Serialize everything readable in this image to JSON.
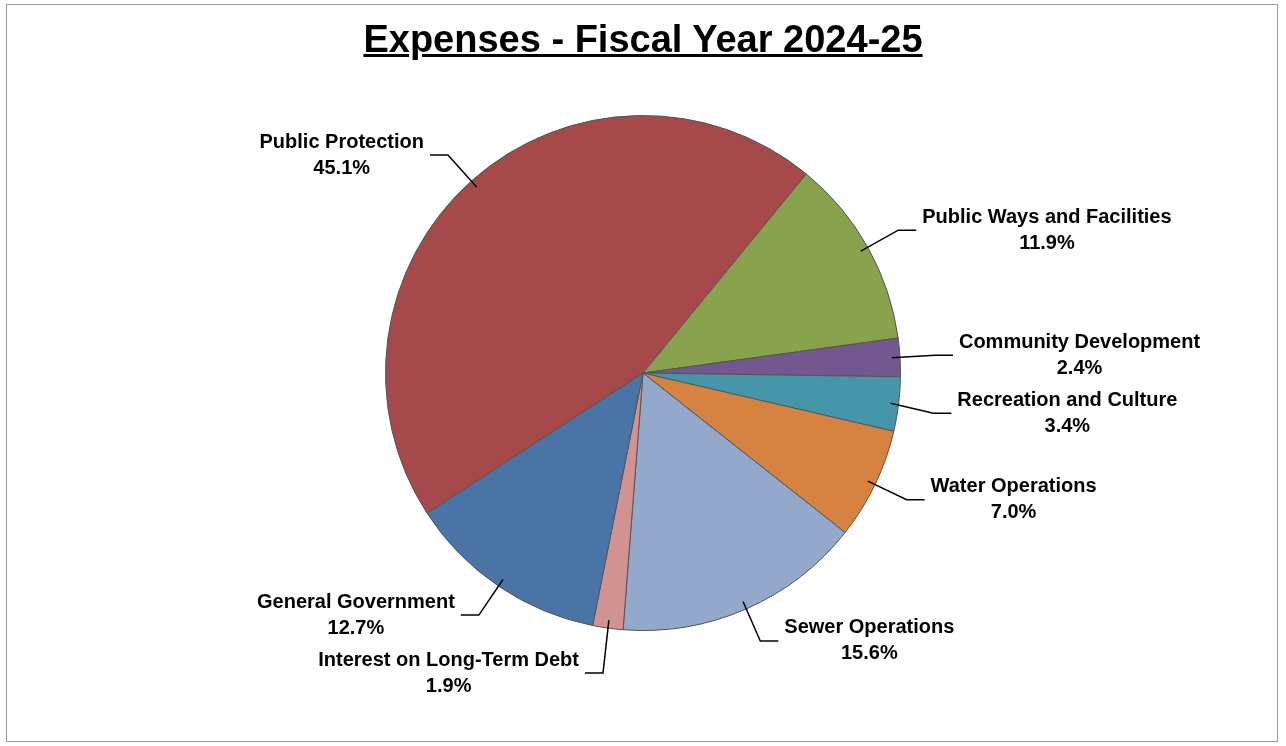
{
  "chart_data": {
    "type": "pie",
    "title": "Expenses - Fiscal Year 2024-25",
    "categories": [
      "Public Protection",
      "Public Ways and Facilities",
      "Community Development",
      "Recreation and Culture",
      "Water Operations",
      "Sewer Operations",
      "Interest on Long-Term Debt",
      "General Government"
    ],
    "values": [
      45.1,
      11.9,
      2.4,
      3.4,
      7.0,
      15.6,
      1.9,
      12.7
    ],
    "value_labels": [
      "45.1%",
      "11.9%",
      "2.4%",
      "3.4%",
      "7.0%",
      "15.6%",
      "1.9%",
      "12.7%"
    ],
    "colors": [
      "#a5494a",
      "#88a24e",
      "#72588e",
      "#4596a9",
      "#d68240",
      "#93a8cb",
      "#d19392",
      "#4a73a6"
    ],
    "legend": false
  }
}
